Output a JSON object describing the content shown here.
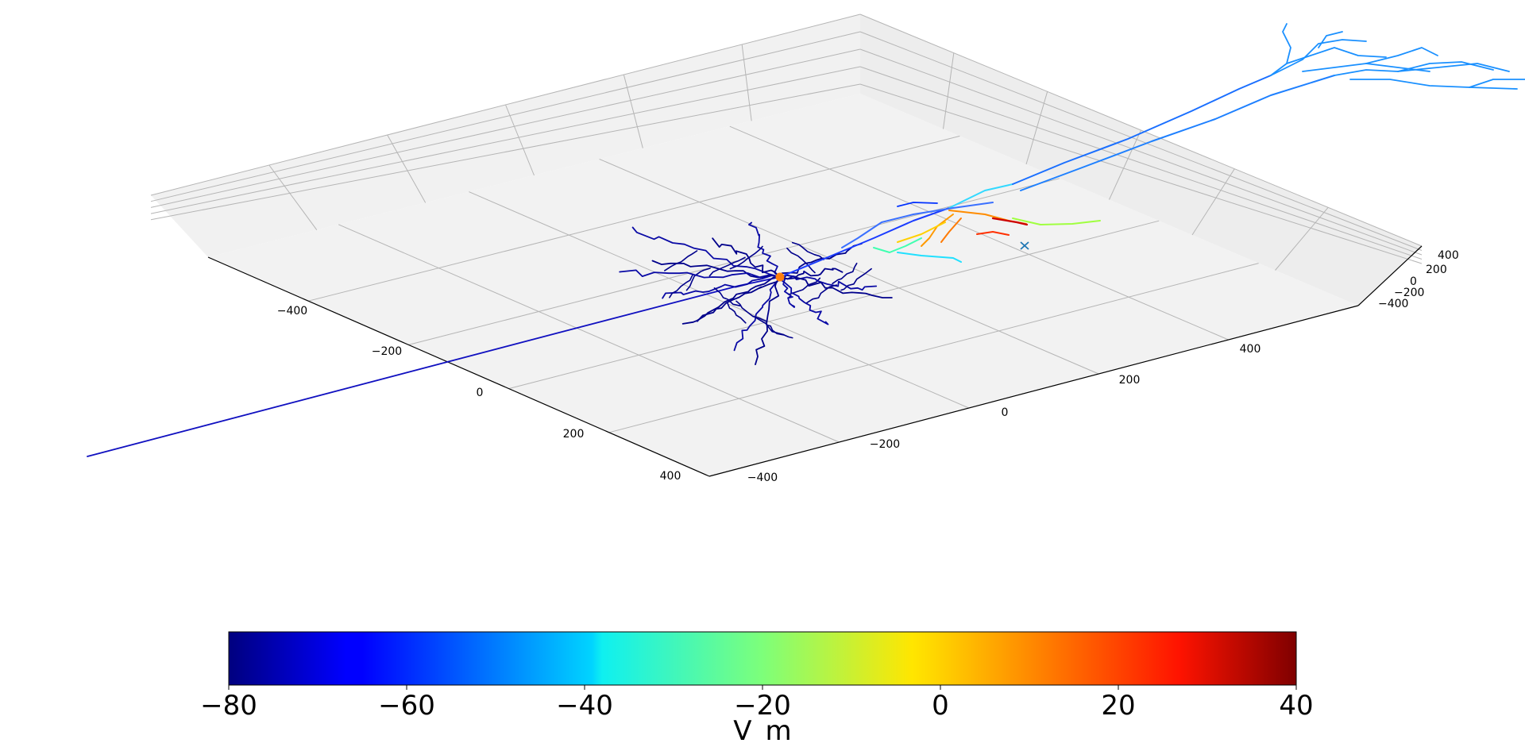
{
  "chart_data": {
    "type": "3d-line",
    "description_type": "neuron morphology colored by membrane potential",
    "axes": {
      "x": {
        "ticks": [
          -400,
          -200,
          0,
          200,
          400
        ],
        "labels": [
          "−400",
          "−200",
          "0",
          "200",
          "400"
        ]
      },
      "y": {
        "ticks": [
          -400,
          -200,
          0,
          200,
          400
        ],
        "labels": [
          "−400",
          "−200",
          "0",
          "200",
          "400"
        ]
      },
      "z": {
        "ticks": [
          -400,
          -200,
          0,
          200,
          400
        ],
        "labels": [
          "−400",
          "−200",
          "0",
          "200",
          "400"
        ]
      },
      "grid": true
    },
    "colorbar": {
      "label": "V_m",
      "range": [
        -80,
        40
      ],
      "ticks": [
        -80,
        -60,
        -40,
        -20,
        0,
        20,
        40
      ],
      "tick_labels": [
        "−80",
        "−60",
        "−40",
        "−20",
        "0",
        "20",
        "40"
      ],
      "colormap": "jet",
      "orientation": "horizontal",
      "placement": "bottom"
    },
    "series": [
      {
        "values": [
          -80,
          -75,
          -72
        ],
        "color_range": "dark blue"
      },
      {
        "values": [
          -20,
          0,
          20,
          30
        ],
        "color_range": "cyan to red"
      },
      {
        "values": [
          -55,
          -50
        ],
        "color_range": "light blue"
      }
    ],
    "markers": [
      {
        "symbol": "circle",
        "color": "#ff7f0e"
      },
      {
        "symbol": "x",
        "color": "#1f77b4"
      }
    ]
  },
  "colors": {
    "pane": "#f2f2f2",
    "grid": "#b0b0b0",
    "axis": "#000000",
    "soma_marker": "#ff7f0e",
    "cross_marker": "#1f77b4"
  }
}
